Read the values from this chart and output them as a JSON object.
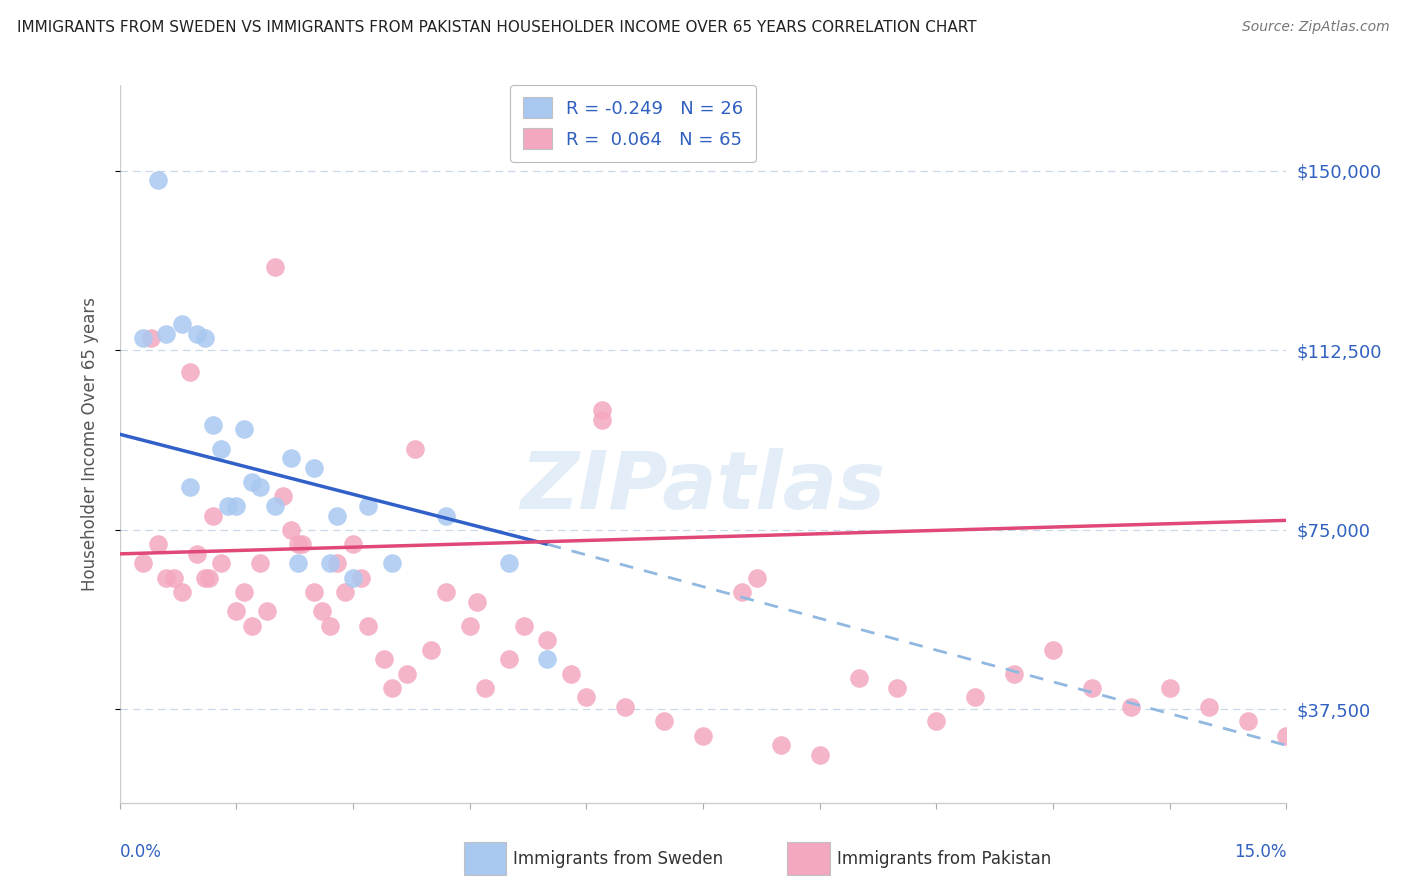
{
  "title": "IMMIGRANTS FROM SWEDEN VS IMMIGRANTS FROM PAKISTAN HOUSEHOLDER INCOME OVER 65 YEARS CORRELATION CHART",
  "source": "Source: ZipAtlas.com",
  "ylabel": "Householder Income Over 65 years",
  "xlim": [
    0.0,
    15.0
  ],
  "ylim": [
    18000,
    168000
  ],
  "yticks": [
    37500,
    75000,
    112500,
    150000
  ],
  "ytick_labels": [
    "$37,500",
    "$75,000",
    "$112,500",
    "$150,000"
  ],
  "xtick_positions": [
    0,
    1.5,
    3.0,
    4.5,
    6.0,
    7.5,
    9.0,
    10.5,
    12.0,
    13.5,
    15.0
  ],
  "background_color": "#ffffff",
  "grid_color": "#c8d8ea",
  "watermark": "ZIPatlas",
  "sweden_color": "#a8c8f0",
  "pakistan_color": "#f4a8c0",
  "sweden_line_color": "#3060c8",
  "pakistan_line_color": "#e04878",
  "sweden_dashed_color": "#90b8e0",
  "sweden_R": -0.249,
  "sweden_N": 26,
  "pakistan_R": 0.064,
  "pakistan_N": 65,
  "sweden_line_x0": 0.0,
  "sweden_line_y0": 95000,
  "sweden_line_x1": 5.5,
  "sweden_line_y1": 72000,
  "sweden_dash_x0": 5.5,
  "sweden_dash_y0": 72000,
  "sweden_dash_x1": 15.0,
  "sweden_dash_y1": 30000,
  "pakistan_line_x0": 0.0,
  "pakistan_line_y0": 70000,
  "pakistan_line_x1": 15.0,
  "pakistan_line_y1": 77000,
  "sweden_scatter_x": [
    0.5,
    0.8,
    1.0,
    1.1,
    1.2,
    1.3,
    1.5,
    1.6,
    1.8,
    2.0,
    2.2,
    2.5,
    2.8,
    3.2,
    3.5,
    4.2,
    5.0,
    0.3,
    0.6,
    0.9,
    1.4,
    1.7,
    2.3,
    2.7,
    3.0,
    5.5
  ],
  "sweden_scatter_y": [
    148000,
    118000,
    116000,
    115000,
    97000,
    92000,
    80000,
    96000,
    84000,
    80000,
    90000,
    88000,
    78000,
    80000,
    68000,
    78000,
    68000,
    115000,
    116000,
    84000,
    80000,
    85000,
    68000,
    68000,
    65000,
    48000
  ],
  "pakistan_scatter_x": [
    0.3,
    0.5,
    0.7,
    0.8,
    1.0,
    1.1,
    1.2,
    1.3,
    1.5,
    1.6,
    1.7,
    1.8,
    1.9,
    2.0,
    2.1,
    2.2,
    2.3,
    2.5,
    2.6,
    2.7,
    2.8,
    2.9,
    3.0,
    3.1,
    3.2,
    3.4,
    3.5,
    3.7,
    3.8,
    4.0,
    4.2,
    4.5,
    4.7,
    5.0,
    5.2,
    5.5,
    5.8,
    6.0,
    6.2,
    6.5,
    7.0,
    7.5,
    8.0,
    8.5,
    9.0,
    9.5,
    10.0,
    10.5,
    11.0,
    11.5,
    12.0,
    12.5,
    13.0,
    13.5,
    14.0,
    14.5,
    15.0,
    0.4,
    0.6,
    0.9,
    1.15,
    2.35,
    6.2,
    4.6,
    8.2
  ],
  "pakistan_scatter_y": [
    68000,
    72000,
    65000,
    62000,
    70000,
    65000,
    78000,
    68000,
    58000,
    62000,
    55000,
    68000,
    58000,
    130000,
    82000,
    75000,
    72000,
    62000,
    58000,
    55000,
    68000,
    62000,
    72000,
    65000,
    55000,
    48000,
    42000,
    45000,
    92000,
    50000,
    62000,
    55000,
    42000,
    48000,
    55000,
    52000,
    45000,
    40000,
    100000,
    38000,
    35000,
    32000,
    62000,
    30000,
    28000,
    44000,
    42000,
    35000,
    40000,
    45000,
    50000,
    42000,
    38000,
    42000,
    38000,
    35000,
    32000,
    115000,
    65000,
    108000,
    65000,
    72000,
    98000,
    60000,
    65000
  ]
}
